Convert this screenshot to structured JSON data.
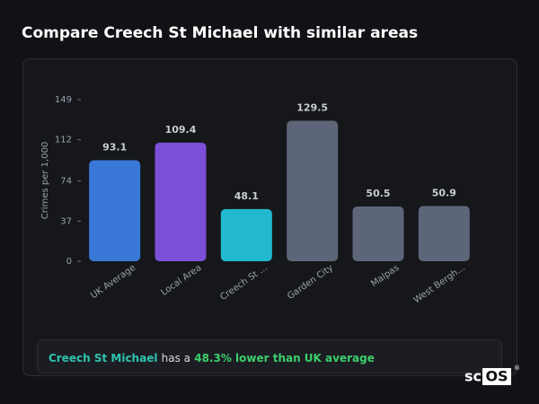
{
  "header": {
    "title": "Compare Creech St Michael with similar areas"
  },
  "chart_data": {
    "type": "bar",
    "y_label": "Crimes per 1,000",
    "categories": [
      "UK Average",
      "Local Area",
      "Creech St ...",
      "Garden City",
      "Malpas",
      "West Bergh..."
    ],
    "values": [
      93.1,
      109.4,
      48.1,
      129.5,
      50.5,
      50.9
    ],
    "colors": [
      "#3a78d8",
      "#7b4fd8",
      "#22b9d0",
      "#5d6678",
      "#5d6678",
      "#5d6678"
    ],
    "ylim": [
      0,
      149
    ],
    "yticks": [
      0,
      37,
      74,
      112,
      149
    ],
    "grid": false
  },
  "summary": {
    "area": "Creech St Michael",
    "connector": "has a",
    "result": "48.3% lower than UK average"
  },
  "logo": {
    "prefix": "sc",
    "boxed": "OS",
    "mark": "®"
  }
}
